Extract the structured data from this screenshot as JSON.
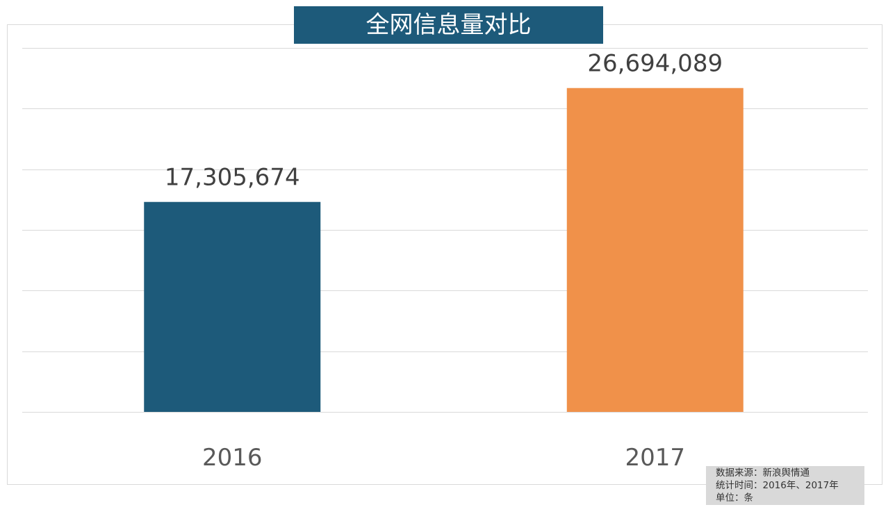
{
  "chart_data": {
    "type": "bar",
    "title": "全网信息量对比",
    "categories": [
      "2016",
      "2017"
    ],
    "values": [
      17305674,
      26694089
    ],
    "data_labels": [
      "17,305,674",
      "26,694,089"
    ],
    "colors": [
      "#1d5a7a",
      "#f0914a"
    ],
    "ylim": [
      0,
      30000000
    ],
    "ytick_step": 5000000,
    "grid": true,
    "y_axis_labels_shown": false,
    "legend": "none"
  },
  "note": {
    "lines": [
      "数据来源：新浪舆情通",
      "统计时间：2016年、2017年",
      "单位：条"
    ]
  }
}
